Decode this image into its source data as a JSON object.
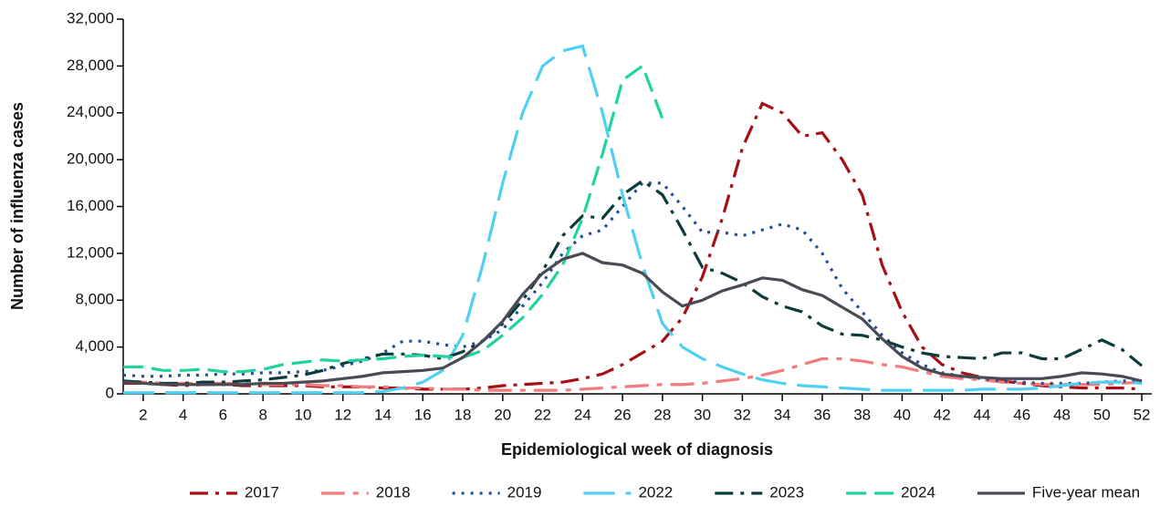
{
  "chart_data": {
    "type": "line",
    "x_label": "Epidemiological week of diagnosis",
    "y_label": "Number of influenza cases",
    "xlim": [
      1,
      52.5
    ],
    "xticks": [
      2,
      4,
      6,
      8,
      10,
      12,
      14,
      16,
      18,
      20,
      22,
      24,
      26,
      28,
      30,
      32,
      34,
      36,
      38,
      40,
      42,
      44,
      46,
      48,
      50,
      52
    ],
    "ylim": [
      0,
      32000
    ],
    "yticks": [
      0,
      {
        "value": 4000,
        "label": "4,000"
      },
      {
        "value": 8000,
        "label": "8,000"
      },
      {
        "value": 12000,
        "label": "12,000"
      },
      {
        "value": 16000,
        "label": "16,000"
      },
      {
        "value": 20000,
        "label": "20,000"
      },
      {
        "value": 24000,
        "label": "24,000"
      },
      {
        "value": 28000,
        "label": "28,000"
      },
      {
        "value": 32000,
        "label": "32,000"
      }
    ],
    "grid": false,
    "legend": "bottom",
    "x": [
      1,
      2,
      3,
      4,
      5,
      6,
      7,
      8,
      9,
      10,
      11,
      12,
      13,
      14,
      15,
      16,
      17,
      18,
      19,
      20,
      21,
      22,
      23,
      24,
      25,
      26,
      27,
      28,
      29,
      30,
      31,
      32,
      33,
      34,
      35,
      36,
      37,
      38,
      39,
      40,
      41,
      42,
      43,
      44,
      45,
      46,
      47,
      48,
      49,
      50,
      51,
      52
    ],
    "series": [
      {
        "name": "2017",
        "color": "#a50f15",
        "dash": "dashdot",
        "values": [
          900,
          900,
          800,
          700,
          800,
          800,
          700,
          700,
          700,
          700,
          600,
          600,
          600,
          500,
          500,
          400,
          400,
          400,
          500,
          700,
          800,
          900,
          1000,
          1300,
          1700,
          2500,
          3500,
          4500,
          6500,
          10000,
          15000,
          21000,
          24800,
          24000,
          22000,
          22300,
          20000,
          17000,
          11000,
          7000,
          4000,
          2500,
          1800,
          1400,
          1100,
          900,
          700,
          600,
          500,
          500,
          500,
          400
        ]
      },
      {
        "name": "2018",
        "color": "#f27b7b",
        "dash": "longshort",
        "values": [
          1000,
          1000,
          900,
          900,
          900,
          900,
          900,
          800,
          800,
          800,
          700,
          700,
          600,
          600,
          500,
          500,
          400,
          400,
          300,
          300,
          300,
          300,
          300,
          400,
          500,
          600,
          700,
          800,
          800,
          900,
          1100,
          1300,
          1600,
          2000,
          2500,
          3000,
          3000,
          2800,
          2500,
          2300,
          1900,
          1500,
          1300,
          1200,
          1000,
          900,
          800,
          800,
          800,
          800,
          900,
          1000
        ]
      },
      {
        "name": "2019",
        "color": "#1f4e9c",
        "dash": "dot",
        "values": [
          1600,
          1500,
          1500,
          1600,
          1600,
          1700,
          1700,
          1800,
          1800,
          1900,
          2000,
          2400,
          2800,
          3500,
          4500,
          4500,
          4200,
          4000,
          4500,
          5500,
          7500,
          9500,
          12000,
          13500,
          14000,
          16000,
          18000,
          18000,
          16000,
          13800,
          13800,
          13500,
          14000,
          14500,
          14000,
          12000,
          9000,
          7000,
          5000,
          3500,
          2500,
          1800,
          1500,
          1300,
          1100,
          1000,
          900,
          900,
          900,
          1000,
          1100,
          1100
        ]
      },
      {
        "name": "2022",
        "color": "#4fd0f2",
        "dash": "long",
        "values": [
          100,
          100,
          100,
          100,
          100,
          100,
          100,
          100,
          100,
          100,
          100,
          100,
          100,
          200,
          500,
          1000,
          2000,
          5000,
          11000,
          18000,
          24000,
          28000,
          29300,
          29700,
          24000,
          17000,
          11000,
          6000,
          4000,
          3000,
          2300,
          1700,
          1200,
          900,
          700,
          600,
          500,
          400,
          300,
          300,
          300,
          300,
          300,
          400,
          400,
          400,
          500,
          700,
          900,
          1000,
          1000,
          900
        ]
      },
      {
        "name": "2023",
        "color": "#0d3b3b",
        "dash": "dashdot",
        "values": [
          1100,
          1000,
          900,
          900,
          1000,
          1000,
          1100,
          1200,
          1400,
          1600,
          2000,
          2600,
          3000,
          3400,
          3400,
          3300,
          3000,
          3600,
          4500,
          6000,
          8000,
          10500,
          13500,
          15200,
          15000,
          17000,
          18200,
          17000,
          14000,
          10800,
          10300,
          9500,
          8300,
          7500,
          7000,
          5800,
          5100,
          5000,
          4600,
          4000,
          3500,
          3200,
          3100,
          3000,
          3500,
          3500,
          3000,
          3000,
          3800,
          4600,
          3800,
          2400
        ]
      },
      {
        "name": "2024",
        "color": "#22d3a0",
        "dash": "dash",
        "values": [
          2300,
          2300,
          2000,
          2000,
          2100,
          1900,
          1900,
          2100,
          2500,
          2700,
          2900,
          2800,
          2900,
          3000,
          3200,
          3300,
          3200,
          3100,
          3700,
          5000,
          6500,
          8500,
          11000,
          15000,
          20500,
          26800,
          28000,
          23500,
          null,
          null,
          null,
          null,
          null,
          null,
          null,
          null,
          null,
          null,
          null,
          null,
          null,
          null,
          null,
          null,
          null,
          null,
          null,
          null,
          null,
          null,
          null,
          null
        ]
      },
      {
        "name": "Five-year mean",
        "color": "#4a4a55",
        "dash": "solid",
        "values": [
          1000,
          900,
          800,
          800,
          800,
          800,
          800,
          900,
          900,
          1000,
          1100,
          1300,
          1500,
          1800,
          1900,
          2000,
          2200,
          3100,
          4500,
          6200,
          8500,
          10300,
          11500,
          12000,
          11200,
          11000,
          10300,
          8700,
          7500,
          8000,
          8800,
          9300,
          9900,
          9700,
          8900,
          8400,
          7400,
          6400,
          4700,
          3200,
          2200,
          1700,
          1500,
          1400,
          1300,
          1300,
          1300,
          1500,
          1800,
          1700,
          1500,
          1100
        ]
      }
    ]
  }
}
